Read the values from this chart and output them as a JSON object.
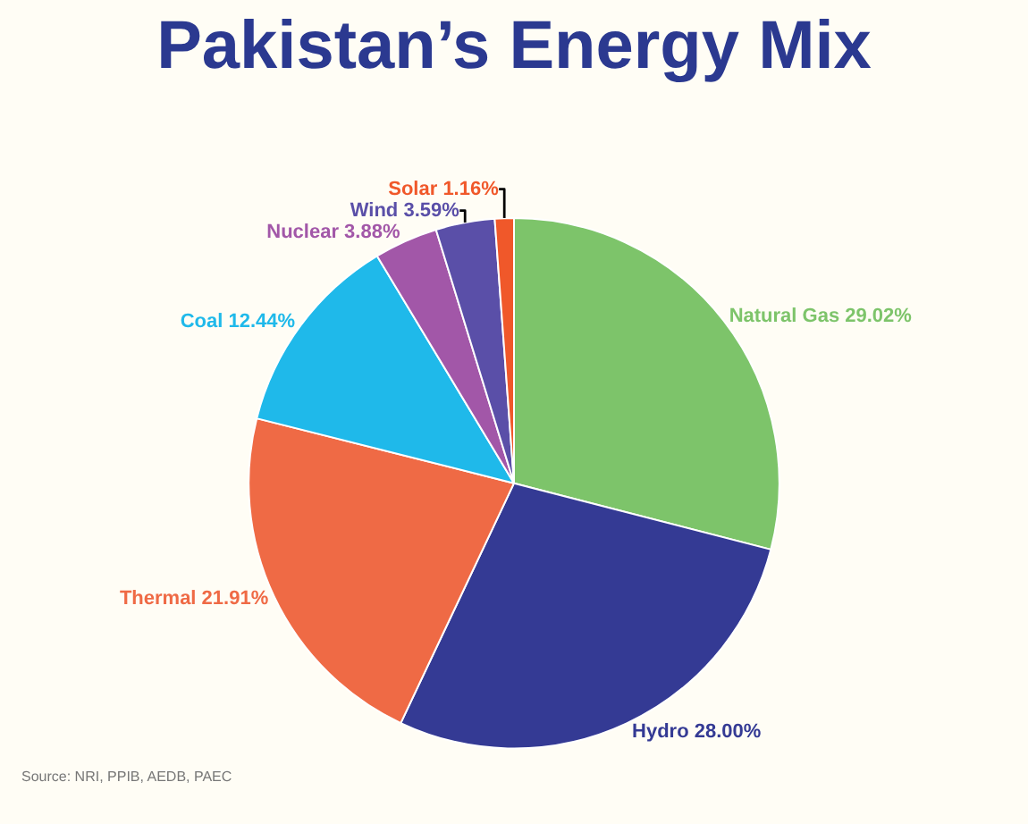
{
  "chart_data": {
    "type": "pie",
    "title": "Pakistan’s Energy Mix",
    "categories": [
      "Natural Gas",
      "Hydro",
      "Thermal",
      "Coal",
      "Nuclear",
      "Wind",
      "Solar"
    ],
    "values": [
      29.02,
      28.0,
      21.91,
      12.44,
      3.88,
      3.59,
      1.16
    ],
    "value_labels": [
      "29.02%",
      "28.00%",
      "21.91%",
      "12.44%",
      "3.88%",
      "3.59%",
      "1.16%"
    ],
    "colors": [
      "#7dc46a",
      "#343a94",
      "#ef6a45",
      "#1fb9ea",
      "#a257a8",
      "#5a4fa8",
      "#f0582a"
    ],
    "legend": false,
    "annotations": [
      "Source: NRI, PPIB, AEDB, PAEC"
    ]
  }
}
